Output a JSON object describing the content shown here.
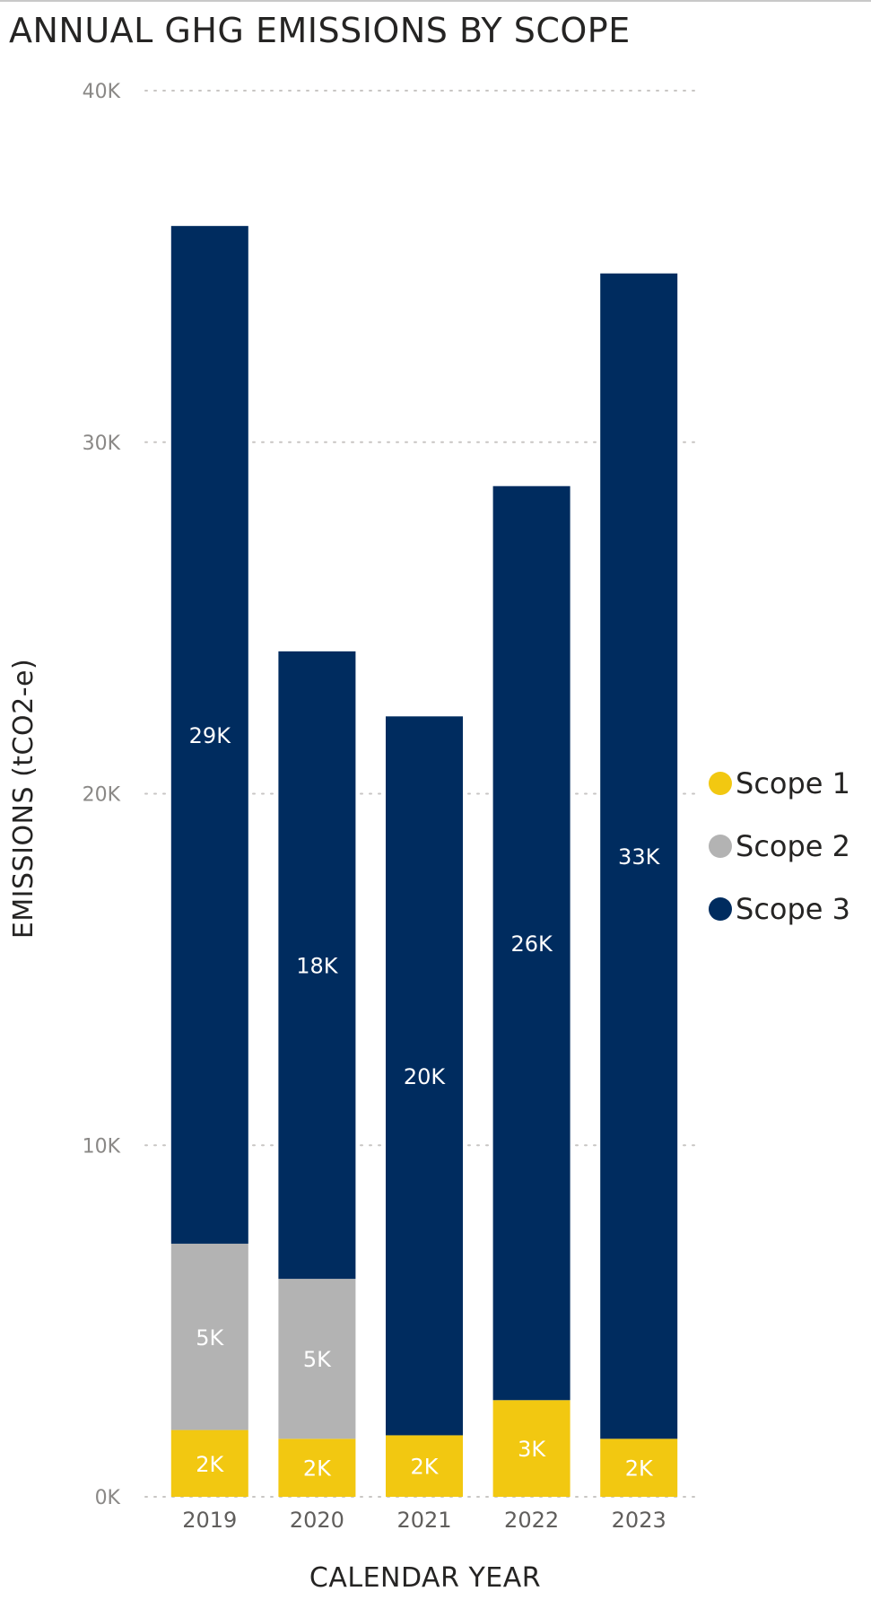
{
  "chart_data": {
    "type": "bar",
    "stacked": true,
    "title": "ANNUAL GHG EMISSIONS BY SCOPE",
    "xlabel": "CALENDAR YEAR",
    "ylabel": "EMISSIONS (tCO2-e)",
    "categories": [
      "2019",
      "2020",
      "2021",
      "2022",
      "2023"
    ],
    "series": [
      {
        "name": "Scope 1",
        "color": "#f2c811",
        "values": [
          1900,
          1650,
          1750,
          2750,
          1650
        ],
        "labels": [
          "2K",
          "2K",
          "2K",
          "3K",
          "2K"
        ]
      },
      {
        "name": "Scope 2",
        "color": "#b3b3b3",
        "values": [
          5300,
          4550,
          0,
          0,
          0
        ],
        "labels": [
          "5K",
          "5K",
          "",
          "",
          ""
        ]
      },
      {
        "name": "Scope 3",
        "color": "#002c5f",
        "values": [
          28950,
          17850,
          20450,
          26000,
          33150
        ],
        "labels": [
          "29K",
          "18K",
          "20K",
          "26K",
          "33K"
        ]
      }
    ],
    "ylim": [
      0,
      40000
    ],
    "yticks": [
      0,
      10000,
      20000,
      30000,
      40000
    ],
    "ytick_labels": [
      "0K",
      "10K",
      "20K",
      "30K",
      "40K"
    ],
    "grid": true,
    "legend_position": "right"
  }
}
